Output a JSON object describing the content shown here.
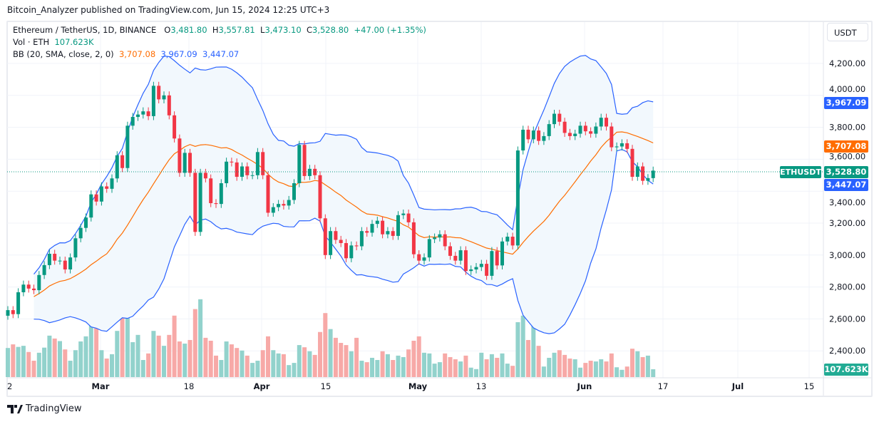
{
  "header": {
    "published": "Bitcoin_Analyzer published on TradingView.com, Jun 15, 2024 12:25 UTC+3"
  },
  "legend": {
    "symbol": "Ethereum / TetherUS, 1D, BINANCE",
    "o_label": "O",
    "open": "3,481.80",
    "h_label": "H",
    "high": "3,557.81",
    "l_label": "L",
    "low": "3,473.10",
    "c_label": "C",
    "close": "3,528.80",
    "change": "+47.00 (+1.35%)",
    "vol_label": "Vol · ETH",
    "vol_value": "107.623K",
    "bb_label": "BB (20, SMA, close, 2, 0)",
    "bb_basis": "3,707.08",
    "bb_upper": "3,967.09",
    "bb_lower": "3,447.07"
  },
  "price_axis": {
    "unit": "USDT",
    "ticks": [
      "4,200.00",
      "4,000.00",
      "3,800.00",
      "3,600.00",
      "3,400.00",
      "3,200.00",
      "3,000.00",
      "2,800.00",
      "2,600.00",
      "2,400.00"
    ]
  },
  "tags": {
    "upper": "3,967.09",
    "basis": "3,707.08",
    "symbol": "ETHUSDT",
    "last": "3,528.80",
    "lower": "3,447.07",
    "volume": "107.623K"
  },
  "time_axis": {
    "labels": [
      "2",
      "Mar",
      "18",
      "Apr",
      "15",
      "May",
      "13",
      "Jun",
      "17",
      "Jul",
      "15"
    ]
  },
  "footer": {
    "brand": "TradingView"
  },
  "colors": {
    "up": "#089981",
    "down": "#f23645",
    "basis": "#ff6d00",
    "bands": "#2962ff",
    "fill": "#f2f8fd"
  },
  "chart_data": {
    "type": "candlestick",
    "first_date": "2024-02-12",
    "last_date": "2024-06-15",
    "ylim": [
      2300,
      4300
    ],
    "first_open": 2620,
    "close": [
      2655,
      2630,
      2767,
      2815,
      2790,
      2780,
      2875,
      2937,
      3008,
      2965,
      2965,
      2910,
      2985,
      3105,
      3170,
      3235,
      3380,
      3335,
      3430,
      3415,
      3480,
      3625,
      3545,
      3810,
      3865,
      3880,
      3900,
      3870,
      4060,
      3975,
      4000,
      3875,
      3730,
      3515,
      3640,
      3515,
      3145,
      3515,
      3480,
      3325,
      3320,
      3450,
      3585,
      3580,
      3490,
      3555,
      3500,
      3500,
      3645,
      3500,
      3265,
      3300,
      3320,
      3310,
      3345,
      3450,
      3690,
      3495,
      3540,
      3500,
      3230,
      3000,
      3150,
      3095,
      3075,
      2980,
      3060,
      3055,
      3150,
      3140,
      3195,
      3215,
      3130,
      3150,
      3120,
      3250,
      3260,
      3205,
      3005,
      2965,
      2985,
      3100,
      3110,
      3130,
      3055,
      2995,
      2965,
      3030,
      2900,
      2910,
      2925,
      2945,
      2870,
      3025,
      2935,
      3085,
      3115,
      3060,
      3655,
      3785,
      3725,
      3780,
      3715,
      3745,
      3820,
      3885,
      3835,
      3765,
      3745,
      3760,
      3810,
      3775,
      3760,
      3805,
      3860,
      3805,
      3675,
      3680,
      3700,
      3665,
      3490,
      3555,
      3465,
      3481.8,
      3528.8
    ],
    "volume_k": [
      400,
      450,
      415,
      430,
      345,
      225,
      335,
      405,
      570,
      530,
      495,
      380,
      225,
      370,
      490,
      560,
      845,
      675,
      370,
      255,
      315,
      635,
      1225,
      860,
      480,
      580,
      235,
      325,
      635,
      570,
      430,
      580,
      845,
      490,
      460,
      510,
      935,
      1070,
      540,
      500,
      295,
      235,
      490,
      450,
      400,
      365,
      295,
      195,
      225,
      370,
      560,
      370,
      325,
      315,
      165,
      195,
      440,
      410,
      355,
      305,
      620,
      880,
      660,
      540,
      470,
      440,
      355,
      540,
      225,
      205,
      265,
      235,
      355,
      315,
      235,
      295,
      275,
      380,
      500,
      560,
      335,
      325,
      185,
      205,
      325,
      275,
      245,
      215,
      295,
      130,
      110,
      335,
      245,
      315,
      265,
      325,
      185,
      155,
      755,
      845,
      510,
      1000,
      430,
      145,
      265,
      335,
      370,
      305,
      255,
      245,
      130,
      195,
      225,
      215,
      245,
      215,
      325,
      135,
      100,
      145,
      390,
      355,
      275,
      295,
      107.623
    ]
  }
}
